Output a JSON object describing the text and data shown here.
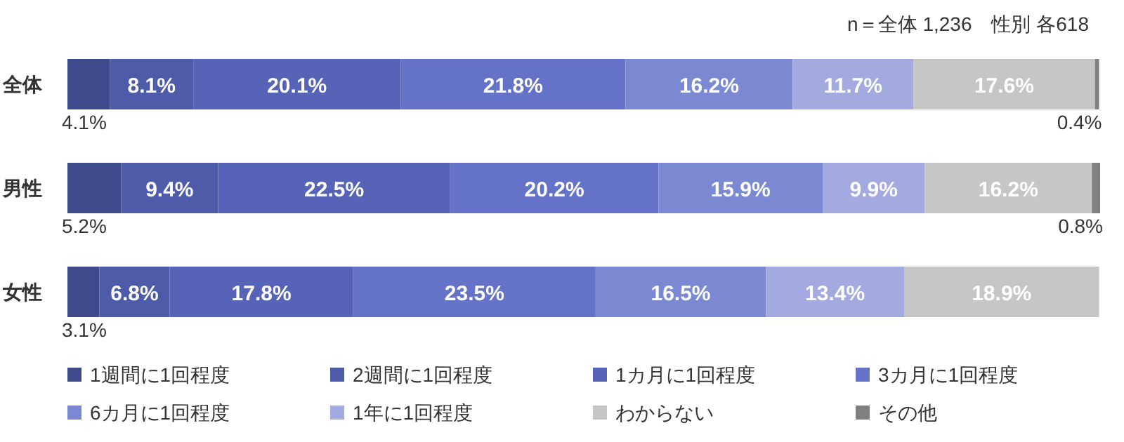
{
  "chart_data": {
    "type": "bar",
    "orientation": "horizontal",
    "stacked": true,
    "legend": "bottom",
    "categories": [
      "全体",
      "男性",
      "女性"
    ],
    "annotations": [
      "n＝全体 1,236　性別 各618"
    ],
    "series": [
      {
        "name": "1週間に1回程度",
        "color": "#3e4a8c",
        "values": [
          4.1,
          5.2,
          3.1
        ],
        "value_labels": [
          "4.1%",
          "5.2%",
          "3.1%"
        ]
      },
      {
        "name": "2週間に1回程度",
        "color": "#4e5ba8",
        "values": [
          8.1,
          9.4,
          6.8
        ],
        "value_labels": [
          "8.1%",
          "9.4%",
          "6.8%"
        ]
      },
      {
        "name": "1カ月に1回程度",
        "color": "#5663b6",
        "values": [
          20.1,
          22.5,
          17.8
        ],
        "value_labels": [
          "20.1%",
          "22.5%",
          "17.8%"
        ]
      },
      {
        "name": "3カ月に1回程度",
        "color": "#6473c8",
        "values": [
          21.8,
          20.2,
          23.5
        ],
        "value_labels": [
          "21.8%",
          "20.2%",
          "23.5%"
        ]
      },
      {
        "name": "6カ月に1回程度",
        "color": "#7b89d2",
        "values": [
          16.2,
          15.9,
          16.5
        ],
        "value_labels": [
          "16.2%",
          "15.9%",
          "16.5%"
        ]
      },
      {
        "name": "1年に1回程度",
        "color": "#a2aae0",
        "values": [
          11.7,
          9.9,
          13.4
        ],
        "value_labels": [
          "11.7%",
          "9.9%",
          "13.4%"
        ]
      },
      {
        "name": "わからない",
        "color": "#c6c6c6",
        "values": [
          17.6,
          16.2,
          18.9
        ],
        "value_labels": [
          "17.6%",
          "16.2%",
          "18.9%"
        ]
      },
      {
        "name": "その他",
        "color": "#808080",
        "values": [
          0.4,
          0.8,
          null
        ],
        "value_labels": [
          "0.4%",
          "0.8%",
          null
        ]
      }
    ]
  }
}
